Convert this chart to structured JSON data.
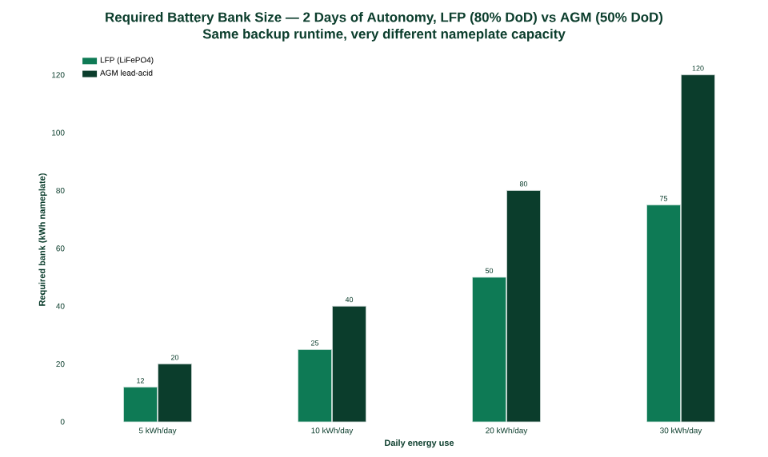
{
  "chart_data": {
    "type": "bar",
    "title": "Required Battery Bank Size — 2 Days of Autonomy, LFP (80% DoD) vs AGM (50% DoD)",
    "subtitle": "Same backup runtime, very different nameplate capacity",
    "xlabel": "Daily energy use",
    "ylabel": "Required bank (kWh nameplate)",
    "categories": [
      "5 kWh/day",
      "10 kWh/day",
      "20 kWh/day",
      "30 kWh/day"
    ],
    "series": [
      {
        "name": "LFP (LiFePO4)",
        "color": "#0e7a55",
        "values": [
          12,
          25,
          50,
          75
        ]
      },
      {
        "name": "AGM lead-acid",
        "color": "#0b3d2c",
        "values": [
          20,
          40,
          80,
          120
        ]
      }
    ],
    "ylim": [
      0,
      126
    ],
    "yticks": [
      0,
      20,
      40,
      60,
      80,
      100,
      120
    ],
    "data_labels": true,
    "legend": "top left"
  }
}
